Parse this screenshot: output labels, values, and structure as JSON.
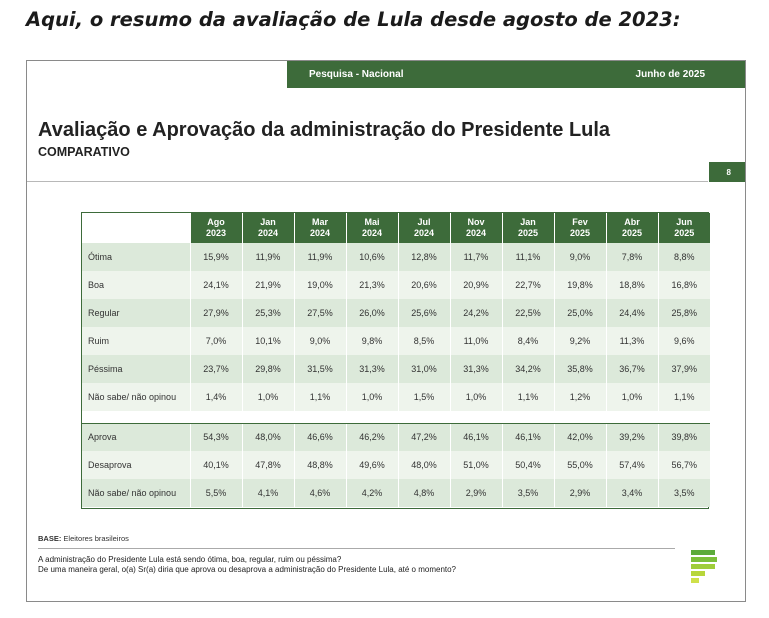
{
  "heading": "Aqui, o resumo da avaliação de Lula desde agosto de 2023:",
  "slide": {
    "survey": "Pesquisa - Nacional",
    "date": "Junho de 2025",
    "title": "Avaliação e Aprovação da administração do Presidente Lula",
    "subtitle": "COMPARATIVO",
    "page_number": "8"
  },
  "table": {
    "columns": [
      {
        "month": "Ago",
        "year": "2023"
      },
      {
        "month": "Jan",
        "year": "2024"
      },
      {
        "month": "Mar",
        "year": "2024"
      },
      {
        "month": "Mai",
        "year": "2024"
      },
      {
        "month": "Jul",
        "year": "2024"
      },
      {
        "month": "Nov",
        "year": "2024"
      },
      {
        "month": "Jan",
        "year": "2025"
      },
      {
        "month": "Fev",
        "year": "2025"
      },
      {
        "month": "Abr",
        "year": "2025"
      },
      {
        "month": "Jun",
        "year": "2025"
      }
    ],
    "evaluation_rows": [
      {
        "label": "Ótima",
        "values": [
          "15,9%",
          "11,9%",
          "11,9%",
          "10,6%",
          "12,8%",
          "11,7%",
          "11,1%",
          "9,0%",
          "7,8%",
          "8,8%"
        ]
      },
      {
        "label": "Boa",
        "values": [
          "24,1%",
          "21,9%",
          "19,0%",
          "21,3%",
          "20,6%",
          "20,9%",
          "22,7%",
          "19,8%",
          "18,8%",
          "16,8%"
        ]
      },
      {
        "label": "Regular",
        "values": [
          "27,9%",
          "25,3%",
          "27,5%",
          "26,0%",
          "25,6%",
          "24,2%",
          "22,5%",
          "25,0%",
          "24,4%",
          "25,8%"
        ]
      },
      {
        "label": "Ruim",
        "values": [
          "7,0%",
          "10,1%",
          "9,0%",
          "9,8%",
          "8,5%",
          "11,0%",
          "8,4%",
          "9,2%",
          "11,3%",
          "9,6%"
        ]
      },
      {
        "label": "Péssima",
        "values": [
          "23,7%",
          "29,8%",
          "31,5%",
          "31,3%",
          "31,0%",
          "31,3%",
          "34,2%",
          "35,8%",
          "36,7%",
          "37,9%"
        ]
      },
      {
        "label": "Não sabe/ não opinou",
        "values": [
          "1,4%",
          "1,0%",
          "1,1%",
          "1,0%",
          "1,5%",
          "1,0%",
          "1,1%",
          "1,2%",
          "1,0%",
          "1,1%"
        ]
      }
    ],
    "approval_rows": [
      {
        "label": "Aprova",
        "values": [
          "54,3%",
          "48,0%",
          "46,6%",
          "46,2%",
          "47,2%",
          "46,1%",
          "46,1%",
          "42,0%",
          "39,2%",
          "39,8%"
        ]
      },
      {
        "label": "Desaprova",
        "values": [
          "40,1%",
          "47,8%",
          "48,8%",
          "49,6%",
          "48,0%",
          "51,0%",
          "50,4%",
          "55,0%",
          "57,4%",
          "56,7%"
        ]
      },
      {
        "label": "Não sabe/ não opinou",
        "values": [
          "5,5%",
          "4,1%",
          "4,6%",
          "4,2%",
          "4,8%",
          "2,9%",
          "3,5%",
          "2,9%",
          "3,4%",
          "3,5%"
        ]
      }
    ]
  },
  "footer": {
    "base_label": "BASE:",
    "base_text": " Eleitores brasileiros",
    "question_1": "A administração do Presidente Lula está sendo ótima, boa, regular, ruim ou péssima?",
    "question_2": "De uma maneira geral, o(a) Sr(a) diria que aprova ou desaprova a administração do Presidente Lula, até o momento?"
  },
  "colors": {
    "brand_green": "#3d6b3a",
    "row_even": "#dce9da",
    "row_odd": "#eef4ec",
    "logo_green": "#5cab3a",
    "logo_lime": "#b7d63a"
  },
  "icons": {
    "logo": "quaest-logo-icon"
  }
}
